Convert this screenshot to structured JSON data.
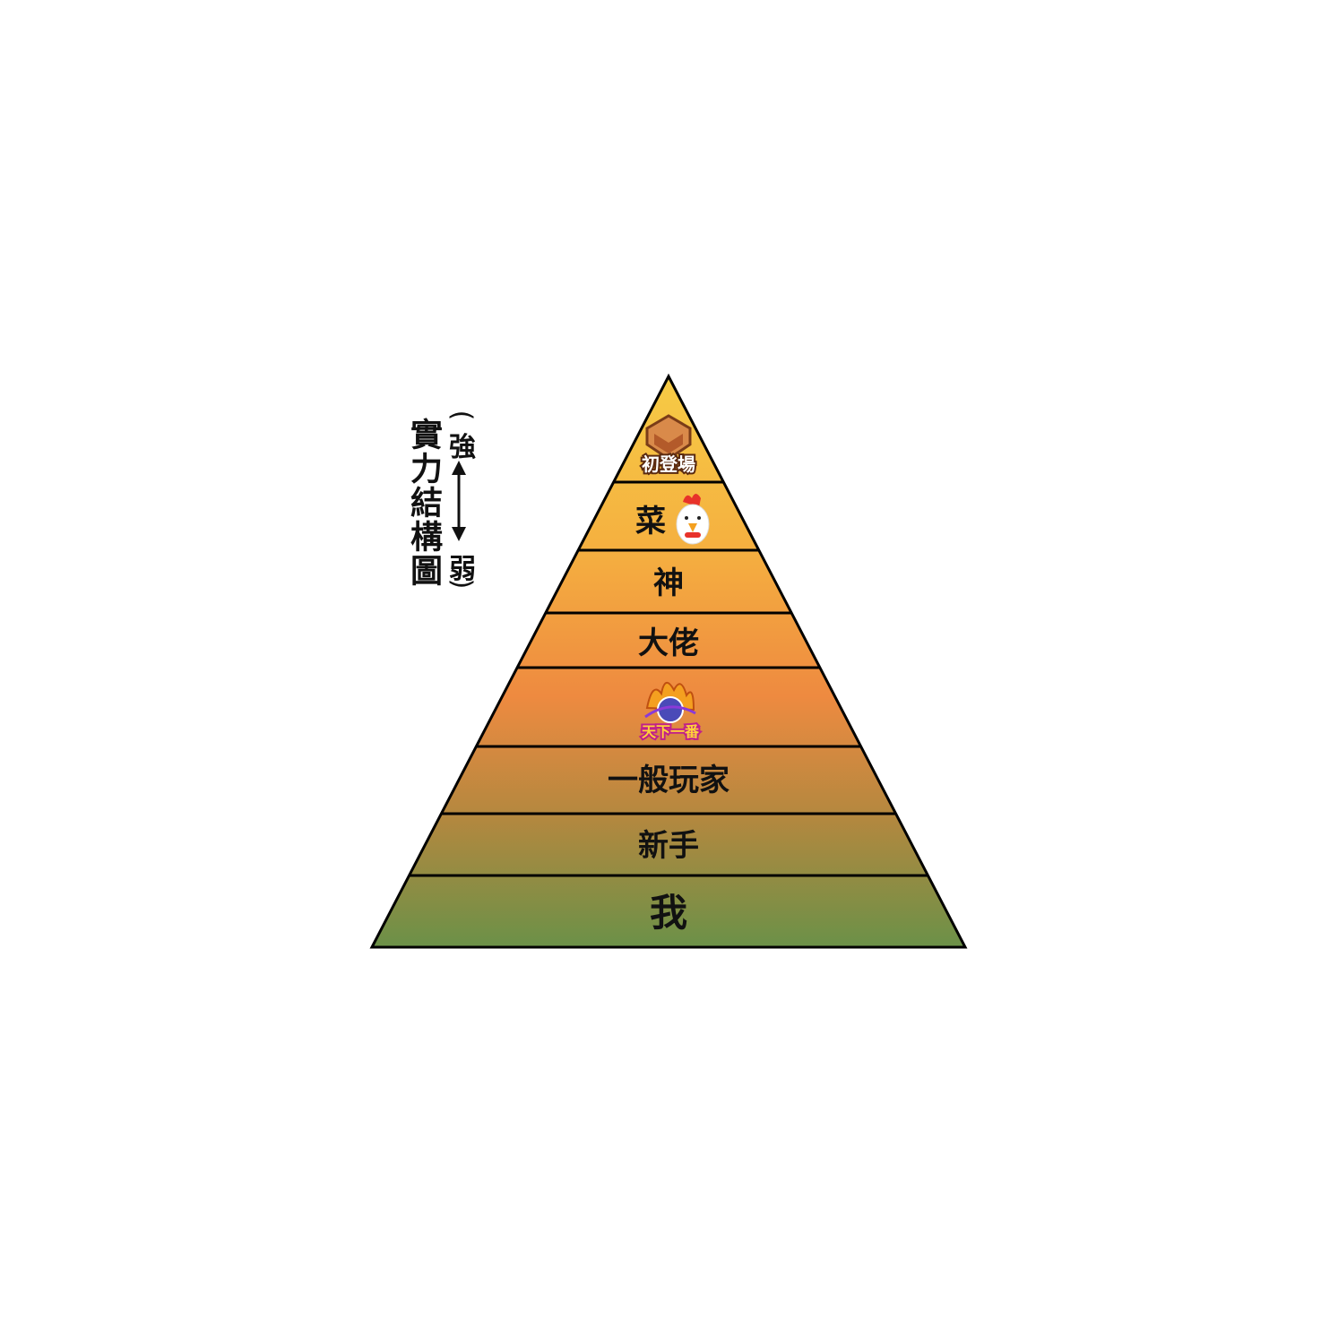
{
  "side_title": "實力結構圖",
  "scale": {
    "open_paren": "(",
    "strong": "強",
    "weak": "弱",
    "close_paren": ")"
  },
  "tiers": [
    {
      "label": "初登場",
      "kind": "badge",
      "icon": "debut-badge-icon"
    },
    {
      "label": "菜",
      "kind": "text+icon",
      "icon": "chicken-icon"
    },
    {
      "label": "神",
      "kind": "text"
    },
    {
      "label": "大佬",
      "kind": "text"
    },
    {
      "label": "天下一番",
      "kind": "badge",
      "icon": "tenkaichi-badge-icon"
    },
    {
      "label": "一般玩家",
      "kind": "text"
    },
    {
      "label": "新手",
      "kind": "text"
    },
    {
      "label": "我",
      "kind": "text"
    }
  ],
  "colors": {
    "top": "#f6cb45",
    "middle": "#ee8a40",
    "bottom": "#6b9148",
    "outline": "#000000"
  }
}
